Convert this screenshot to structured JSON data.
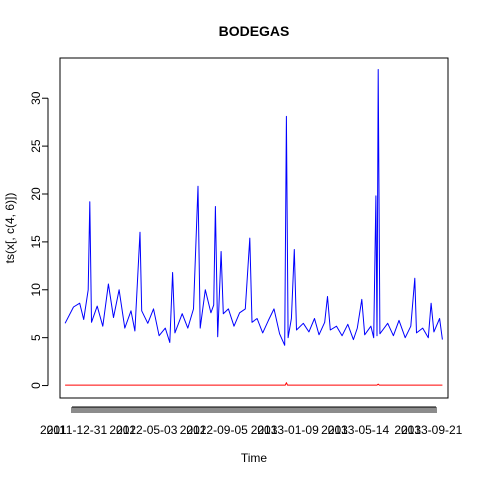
{
  "chart_data": {
    "type": "line",
    "title": "BODEGAS",
    "xlabel": "Time",
    "ylabel": "ts(x[, c(4, 6)])",
    "ylim": [
      -1.3,
      34.2
    ],
    "y_ticks": [
      0,
      5,
      10,
      15,
      20,
      25,
      30
    ],
    "x_range": [
      "2011-12-01",
      "2013-10-20"
    ],
    "x_tick_labels": [
      "2011-12-31",
      "2012-05-03",
      "2012-09-05",
      "2013-01-09",
      "2013-05-14",
      "2013-09-21"
    ],
    "x_overprinted_labels": [
      "2011",
      "2012",
      "2012",
      "2013",
      "2013",
      "2013"
    ],
    "grid": false,
    "series": [
      {
        "color": "#0000ff",
        "points": [
          [
            "2011-12-10",
            6.5
          ],
          [
            "2011-12-25",
            8.2
          ],
          [
            "2012-01-05",
            8.6
          ],
          [
            "2012-01-12",
            6.9
          ],
          [
            "2012-01-20",
            10.0
          ],
          [
            "2012-01-23",
            19.2
          ],
          [
            "2012-01-26",
            6.6
          ],
          [
            "2012-02-05",
            8.3
          ],
          [
            "2012-02-15",
            6.2
          ],
          [
            "2012-02-25",
            10.6
          ],
          [
            "2012-03-05",
            7.1
          ],
          [
            "2012-03-15",
            10.0
          ],
          [
            "2012-03-25",
            6.0
          ],
          [
            "2012-04-05",
            7.8
          ],
          [
            "2012-04-12",
            5.7
          ],
          [
            "2012-04-21",
            16.0
          ],
          [
            "2012-04-24",
            7.8
          ],
          [
            "2012-05-05",
            6.5
          ],
          [
            "2012-05-15",
            8.0
          ],
          [
            "2012-05-25",
            5.2
          ],
          [
            "2012-06-05",
            6.0
          ],
          [
            "2012-06-13",
            4.5
          ],
          [
            "2012-06-18",
            11.8
          ],
          [
            "2012-06-22",
            5.5
          ],
          [
            "2012-07-05",
            7.5
          ],
          [
            "2012-07-15",
            6.0
          ],
          [
            "2012-07-25",
            8.0
          ],
          [
            "2012-08-02",
            20.8
          ],
          [
            "2012-08-06",
            6.0
          ],
          [
            "2012-08-15",
            10.0
          ],
          [
            "2012-08-25",
            7.6
          ],
          [
            "2012-08-30",
            8.4
          ],
          [
            "2012-09-02",
            18.7
          ],
          [
            "2012-09-06",
            5.1
          ],
          [
            "2012-09-12",
            14.0
          ],
          [
            "2012-09-16",
            7.5
          ],
          [
            "2012-09-25",
            8.0
          ],
          [
            "2012-10-05",
            6.2
          ],
          [
            "2012-10-15",
            7.6
          ],
          [
            "2012-10-25",
            8.0
          ],
          [
            "2012-11-02",
            15.4
          ],
          [
            "2012-11-06",
            6.6
          ],
          [
            "2012-11-15",
            7.0
          ],
          [
            "2012-11-25",
            5.5
          ],
          [
            "2012-12-05",
            6.8
          ],
          [
            "2012-12-15",
            8.0
          ],
          [
            "2012-12-25",
            5.4
          ],
          [
            "2013-01-03",
            4.2
          ],
          [
            "2013-01-06",
            28.1
          ],
          [
            "2013-01-09",
            5.0
          ],
          [
            "2013-01-15",
            7.0
          ],
          [
            "2013-01-20",
            14.2
          ],
          [
            "2013-01-24",
            5.8
          ],
          [
            "2013-02-05",
            6.5
          ],
          [
            "2013-02-15",
            5.6
          ],
          [
            "2013-02-25",
            7.0
          ],
          [
            "2013-03-05",
            5.3
          ],
          [
            "2013-03-15",
            6.6
          ],
          [
            "2013-03-20",
            9.3
          ],
          [
            "2013-03-25",
            5.8
          ],
          [
            "2013-04-05",
            6.2
          ],
          [
            "2013-04-15",
            5.2
          ],
          [
            "2013-04-25",
            6.4
          ],
          [
            "2013-05-05",
            4.8
          ],
          [
            "2013-05-12",
            6.0
          ],
          [
            "2013-05-20",
            9.0
          ],
          [
            "2013-05-25",
            5.3
          ],
          [
            "2013-06-05",
            6.2
          ],
          [
            "2013-06-10",
            5.0
          ],
          [
            "2013-06-14",
            19.8
          ],
          [
            "2013-06-16",
            5.2
          ],
          [
            "2013-06-18",
            33.0
          ],
          [
            "2013-06-21",
            5.4
          ],
          [
            "2013-07-05",
            6.5
          ],
          [
            "2013-07-15",
            5.2
          ],
          [
            "2013-07-25",
            6.8
          ],
          [
            "2013-08-05",
            5.0
          ],
          [
            "2013-08-15",
            6.2
          ],
          [
            "2013-08-22",
            11.2
          ],
          [
            "2013-08-25",
            5.5
          ],
          [
            "2013-09-05",
            6.0
          ],
          [
            "2013-09-15",
            5.0
          ],
          [
            "2013-09-20",
            8.6
          ],
          [
            "2013-09-25",
            5.6
          ],
          [
            "2013-10-05",
            7.0
          ],
          [
            "2013-10-10",
            4.8
          ]
        ]
      },
      {
        "color": "#ff0000",
        "points": [
          [
            "2011-12-10",
            0.05
          ],
          [
            "2013-01-04",
            0.05
          ],
          [
            "2013-01-06",
            0.3
          ],
          [
            "2013-01-08",
            0.05
          ],
          [
            "2013-06-16",
            0.05
          ],
          [
            "2013-06-18",
            0.15
          ],
          [
            "2013-06-20",
            0.05
          ],
          [
            "2013-10-10",
            0.05
          ]
        ]
      }
    ]
  }
}
